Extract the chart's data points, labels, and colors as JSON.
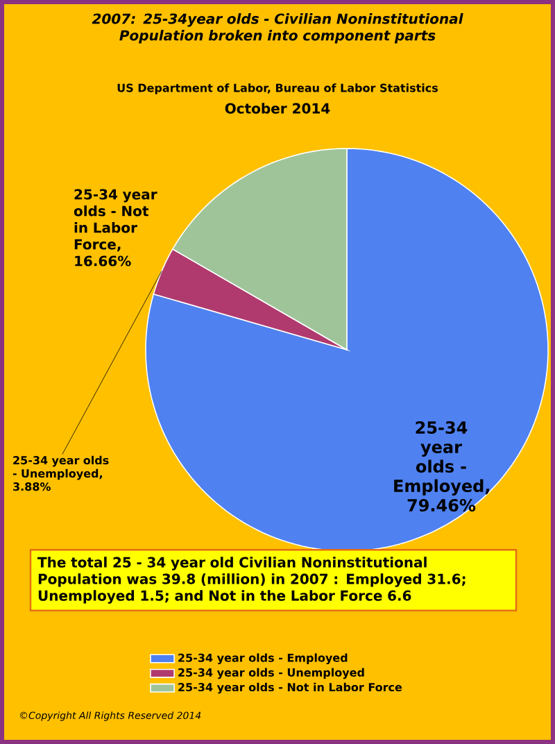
{
  "chart_data": {
    "type": "pie",
    "title": "2007: 25-34year olds - Civilian Noninstitutional Population broken into component parts",
    "subtitle": "US Department of Labor, Bureau of Labor Statistics",
    "categories": [
      "25-34 year olds - Employed",
      "25-34 year olds - Unemployed",
      "25-34 year olds - Not in Labor Force"
    ],
    "values": [
      79.46,
      3.88,
      16.66
    ],
    "colors": [
      "#4f81f0",
      "#b03a6e",
      "#9fc49a"
    ],
    "value_labels": [
      "25-34 year olds - Employed, 79.46%",
      "25-34 year olds - Unemployed, 3.88%",
      "25-34 year olds - Not in Labor Force, 16.66%"
    ],
    "legend": "bottom",
    "annotations": [
      "October 2014",
      "The total  25 - 34 year old Civilian Noninstitutional Population was 39.8 (million) in 2007 :  Employed 31.6; Unemployed 1.5; and Not in the Labor Force 6.6",
      "©Copyright All Rights Reserved 2014"
    ]
  }
}
